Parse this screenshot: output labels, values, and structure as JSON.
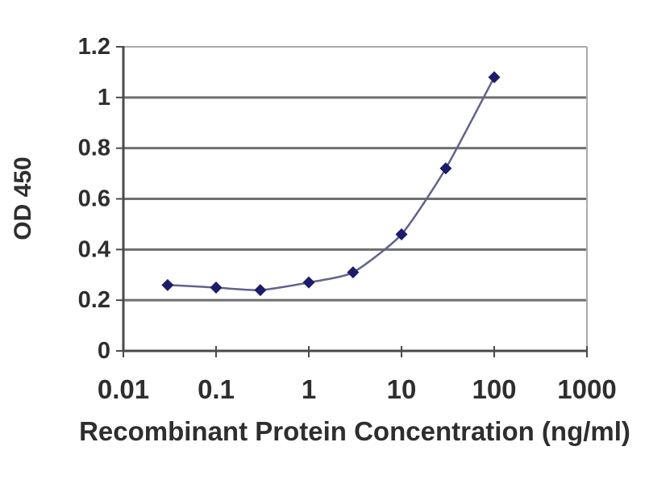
{
  "chart_data": {
    "type": "line",
    "title": "",
    "xlabel": "Recombinant Protein Concentration (ng/ml)",
    "ylabel": "OD 450",
    "x_scale": "log",
    "y_scale": "linear",
    "xlim": [
      0.01,
      1000
    ],
    "ylim": [
      0,
      1.2
    ],
    "x_ticks": [
      "0.01",
      "0.1",
      "1",
      "10",
      "100",
      "1000"
    ],
    "x_tick_values": [
      0.01,
      0.1,
      1,
      10,
      100,
      1000
    ],
    "y_ticks": [
      "0",
      "0.2",
      "0.4",
      "0.6",
      "0.8",
      "1",
      "1.2"
    ],
    "y_tick_values": [
      0,
      0.2,
      0.4,
      0.6,
      0.8,
      1,
      1.2
    ],
    "grid": "horizontal",
    "legend": "none",
    "series": [
      {
        "marker": "diamond",
        "x": [
          0.03,
          0.1,
          0.3,
          1,
          3,
          10,
          30,
          100
        ],
        "y": [
          0.26,
          0.25,
          0.24,
          0.27,
          0.31,
          0.46,
          0.72,
          1.08
        ]
      }
    ],
    "colors": {
      "line": "#62628e",
      "marker": "#1c1c6a",
      "gridline_major": "#6f6f6f",
      "gridline_light": "#ababab",
      "axis": "#4a4a4a",
      "text": "#2e2e2e",
      "background": "#ffffff"
    }
  }
}
